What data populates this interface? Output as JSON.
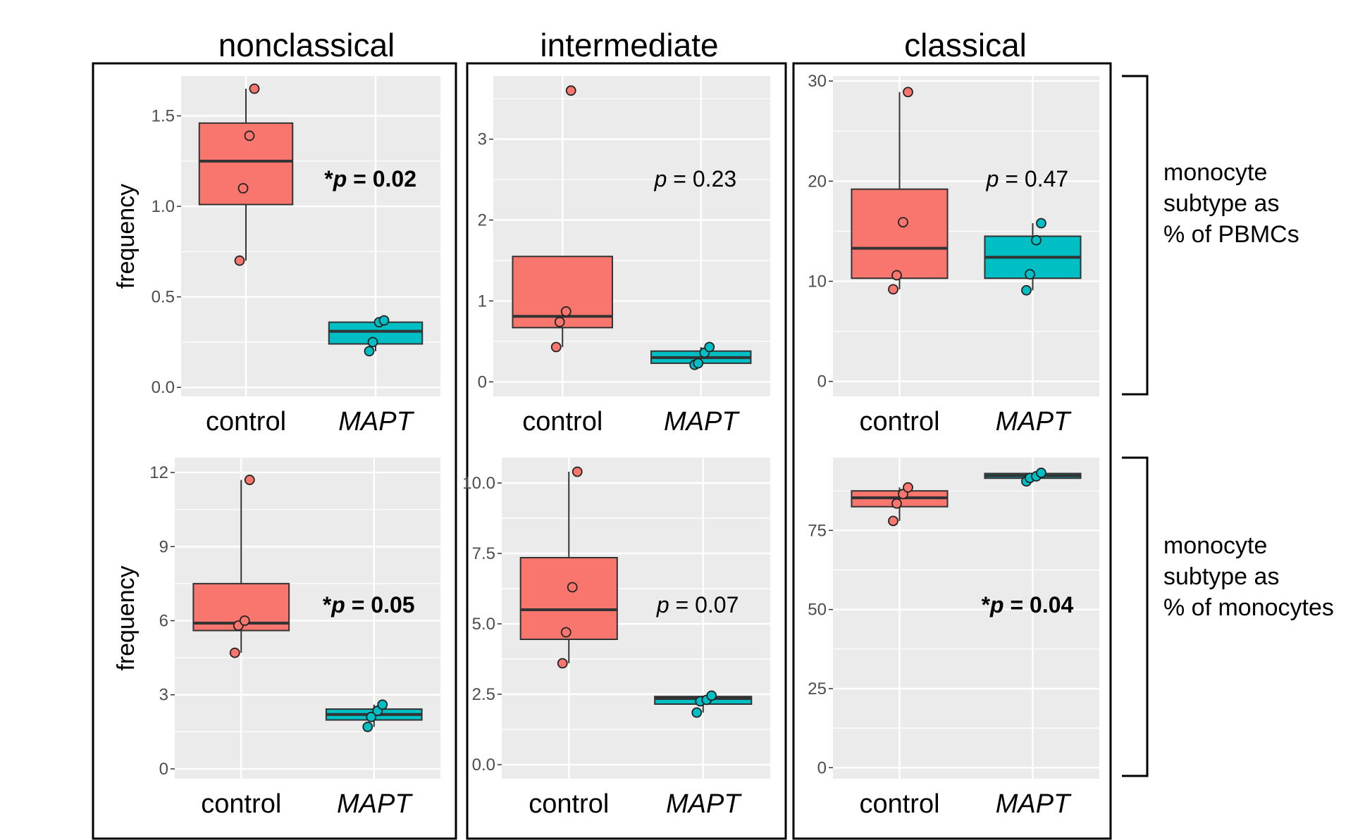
{
  "colors": {
    "control": "#F8766D",
    "MAPT": "#00BFC4",
    "panel_bg": "#EBEBEB",
    "grid": "#FFFFFF",
    "median": "#333333"
  },
  "columns": [
    "nonclassical",
    "intermediate",
    "classical"
  ],
  "row_labels": [
    "monocyte\nsubtype as\n% of PBMCs",
    "monocyte\nsubtype as\n% of monocytes"
  ],
  "chart_data": [
    {
      "type": "boxplot",
      "column": "nonclassical",
      "row": "% of PBMCs",
      "ylabel": "frequency",
      "ylim": [
        -0.05,
        1.72
      ],
      "yticks": [
        0.0,
        0.5,
        1.0,
        1.5
      ],
      "ytick_labels": [
        "0.0",
        "0.5",
        "1.0",
        "1.5"
      ],
      "categories": [
        "control",
        "MAPT"
      ],
      "p_label": [
        "*",
        "p",
        " = 0.02"
      ],
      "significant": true,
      "boxes": [
        {
          "group": "control",
          "whisker_low": 0.7,
          "q1": 1.01,
          "median": 1.25,
          "q3": 1.46,
          "whisker_high": 1.65,
          "points": [
            0.7,
            1.1,
            1.39,
            1.65
          ]
        },
        {
          "group": "MAPT",
          "whisker_low": 0.2,
          "q1": 0.24,
          "median": 0.31,
          "q3": 0.36,
          "whisker_high": 0.37,
          "points": [
            0.2,
            0.25,
            0.36,
            0.37
          ]
        }
      ]
    },
    {
      "type": "boxplot",
      "column": "intermediate",
      "row": "% of PBMCs",
      "ylabel": "",
      "ylim": [
        -0.18,
        3.78
      ],
      "yticks": [
        0,
        1,
        2,
        3
      ],
      "ytick_labels": [
        "0",
        "1",
        "2",
        "3"
      ],
      "categories": [
        "control",
        "MAPT"
      ],
      "p_label": [
        "",
        "p",
        " = 0.23"
      ],
      "significant": false,
      "boxes": [
        {
          "group": "control",
          "whisker_low": 0.43,
          "q1": 0.67,
          "median": 0.81,
          "q3": 1.55,
          "whisker_high": 1.55,
          "points": [
            0.43,
            0.74,
            0.87,
            3.6
          ]
        },
        {
          "group": "MAPT",
          "whisker_low": 0.21,
          "q1": 0.23,
          "median": 0.3,
          "q3": 0.38,
          "whisker_high": 0.43,
          "points": [
            0.21,
            0.23,
            0.36,
            0.43
          ]
        }
      ]
    },
    {
      "type": "boxplot",
      "column": "classical",
      "row": "% of PBMCs",
      "ylabel": "",
      "ylim": [
        -1.5,
        30.5
      ],
      "yticks": [
        0,
        10,
        20,
        30
      ],
      "ytick_labels": [
        "0",
        "10",
        "20",
        "30"
      ],
      "categories": [
        "control",
        "MAPT"
      ],
      "p_label": [
        "",
        "p",
        " = 0.47"
      ],
      "significant": false,
      "boxes": [
        {
          "group": "control",
          "whisker_low": 9.2,
          "q1": 10.3,
          "median": 13.3,
          "q3": 19.2,
          "whisker_high": 28.9,
          "points": [
            9.2,
            10.6,
            15.9,
            28.9
          ]
        },
        {
          "group": "MAPT",
          "whisker_low": 9.1,
          "q1": 10.3,
          "median": 12.4,
          "q3": 14.5,
          "whisker_high": 15.8,
          "points": [
            9.1,
            10.7,
            14.1,
            15.8
          ]
        }
      ]
    },
    {
      "type": "boxplot",
      "column": "nonclassical",
      "row": "% of monocytes",
      "ylabel": "frequency",
      "ylim": [
        -0.4,
        12.6
      ],
      "yticks": [
        0,
        3,
        6,
        9,
        12
      ],
      "ytick_labels": [
        "0",
        "3",
        "6",
        "9",
        "12"
      ],
      "categories": [
        "control",
        "MAPT"
      ],
      "p_label": [
        "*",
        "p",
        " = 0.05"
      ],
      "significant": true,
      "boxes": [
        {
          "group": "control",
          "whisker_low": 4.7,
          "q1": 5.6,
          "median": 5.9,
          "q3": 7.5,
          "whisker_high": 11.7,
          "points": [
            4.7,
            5.8,
            6.0,
            11.7
          ]
        },
        {
          "group": "MAPT",
          "whisker_low": 1.7,
          "q1": 1.98,
          "median": 2.2,
          "q3": 2.42,
          "whisker_high": 2.6,
          "points": [
            1.7,
            2.1,
            2.35,
            2.6
          ]
        }
      ]
    },
    {
      "type": "boxplot",
      "column": "intermediate",
      "row": "% of monocytes",
      "ylabel": "",
      "ylim": [
        -0.5,
        10.9
      ],
      "yticks": [
        0.0,
        2.5,
        5.0,
        7.5,
        10.0
      ],
      "ytick_labels": [
        "0.0",
        "2.5",
        "5.0",
        "7.5",
        "10.0"
      ],
      "categories": [
        "control",
        "MAPT"
      ],
      "p_label": [
        "",
        "p",
        " = 0.07"
      ],
      "significant": false,
      "boxes": [
        {
          "group": "control",
          "whisker_low": 3.6,
          "q1": 4.45,
          "median": 5.5,
          "q3": 7.35,
          "whisker_high": 10.4,
          "points": [
            3.6,
            4.7,
            6.3,
            10.4
          ]
        },
        {
          "group": "MAPT",
          "whisker_low": 1.85,
          "q1": 2.15,
          "median": 2.35,
          "q3": 2.42,
          "whisker_high": 2.45,
          "points": [
            1.85,
            2.25,
            2.3,
            2.45
          ]
        }
      ]
    },
    {
      "type": "boxplot",
      "column": "classical",
      "row": "% of monocytes",
      "ylabel": "",
      "ylim": [
        -3.5,
        98
      ],
      "yticks": [
        0,
        25,
        50,
        75
      ],
      "ytick_labels": [
        "0",
        "25",
        "50",
        "75"
      ],
      "categories": [
        "control",
        "MAPT"
      ],
      "p_label": [
        "*",
        "p",
        " = 0.04"
      ],
      "significant": true,
      "boxes": [
        {
          "group": "control",
          "whisker_low": 78,
          "q1": 82.5,
          "median": 85.3,
          "q3": 87.5,
          "whisker_high": 88.6,
          "points": [
            78,
            83.5,
            86.5,
            88.6
          ]
        },
        {
          "group": "MAPT",
          "whisker_low": 90.5,
          "q1": 91.5,
          "median": 92.3,
          "q3": 93.0,
          "whisker_high": 93.2,
          "points": [
            90.5,
            91.6,
            92.1,
            93.2
          ]
        }
      ]
    }
  ]
}
